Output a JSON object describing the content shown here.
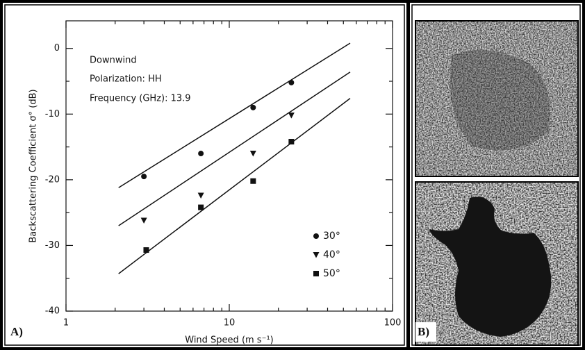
{
  "chart_data": {
    "type": "scatter",
    "x_label": "Wind Speed (m s⁻¹)",
    "y_label": "Backscattering Coefficient σ° (dB)",
    "annotations": [
      "Downwind",
      "Polarization: HH",
      "Frequency (GHz): 13.9"
    ],
    "xlim": [
      1,
      100
    ],
    "xticks": [
      1,
      10,
      100
    ],
    "log_x": true,
    "xminorticks": [
      2,
      3,
      4,
      5,
      6,
      7,
      8,
      9,
      20,
      30,
      40,
      50,
      60,
      70,
      80,
      90
    ],
    "ylim": [
      -40,
      4.2
    ],
    "yticks": [
      0,
      -10,
      -20,
      -30,
      -40
    ],
    "yminorticks": [
      -5,
      -15,
      -25,
      -35
    ],
    "series": [
      {
        "name": "30°",
        "marker": "circle",
        "color": "#111111",
        "x": [
          3.0,
          6.7,
          14,
          24
        ],
        "values": [
          -19.5,
          -16,
          -9,
          -5.2
        ]
      },
      {
        "name": "40°",
        "marker": "triangle-down",
        "color": "#111111",
        "x": [
          3.0,
          6.7,
          14,
          24
        ],
        "values": [
          -26.2,
          -22.4,
          -16,
          -10.2
        ]
      },
      {
        "name": "50°",
        "marker": "square",
        "color": "#111111",
        "x": [
          3.1,
          6.7,
          14,
          24
        ],
        "values": [
          -30.7,
          -24.2,
          -20.2,
          -14.2
        ]
      }
    ],
    "fit_lines": [
      {
        "x": [
          2.1,
          55
        ],
        "values": [
          -21.2,
          0.8
        ]
      },
      {
        "x": [
          2.1,
          55
        ],
        "values": [
          -27,
          -3.6
        ]
      },
      {
        "x": [
          2.1,
          55
        ],
        "values": [
          -34.3,
          -7.6
        ]
      }
    ]
  },
  "panel_labels": [
    "A)",
    "B)"
  ]
}
